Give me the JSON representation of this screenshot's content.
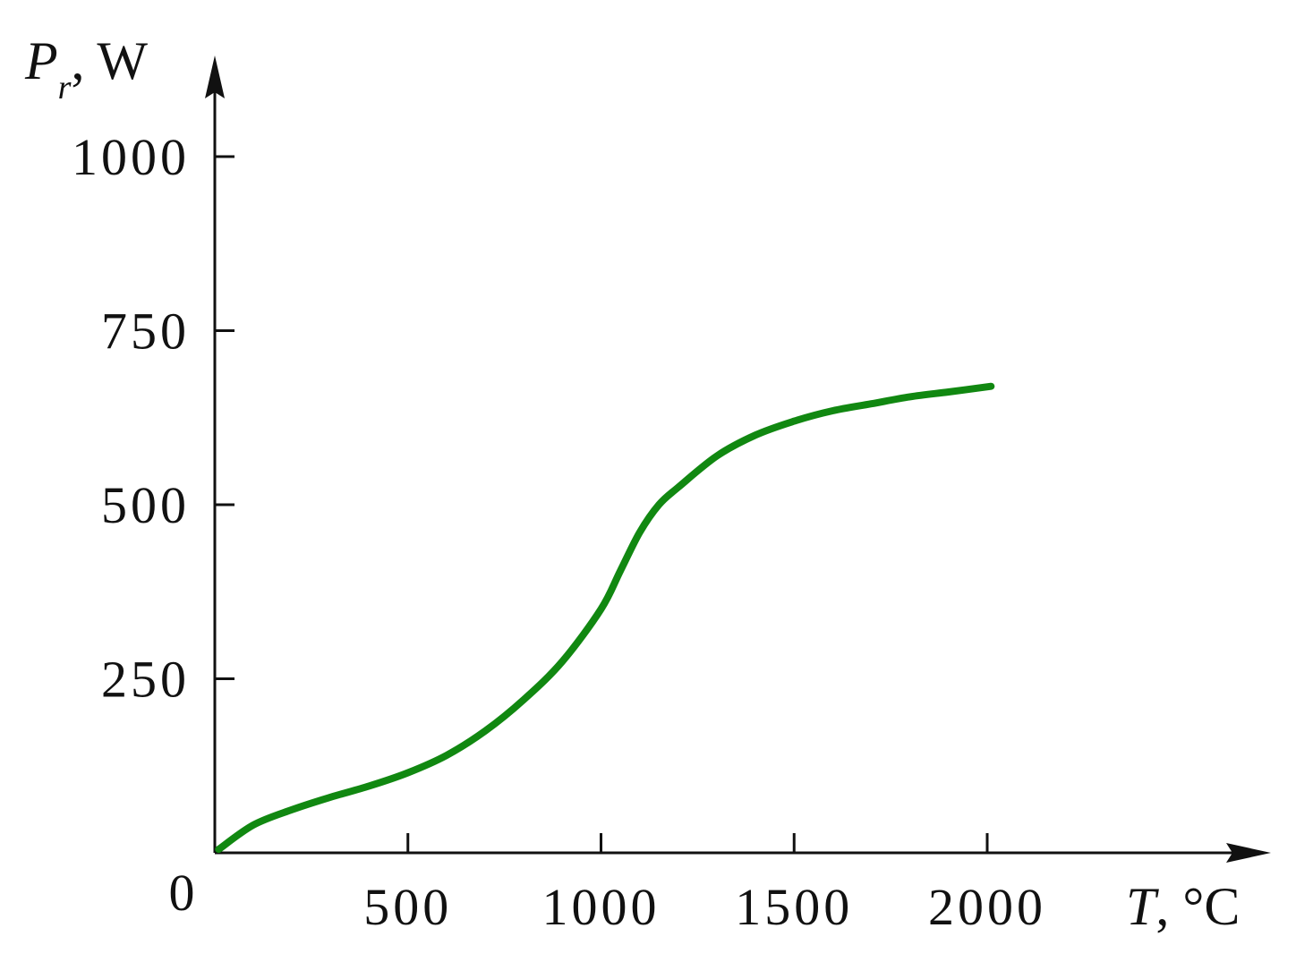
{
  "chart_data": {
    "type": "line",
    "title": "",
    "xlabel": {
      "var": "T",
      "unit": ", °C"
    },
    "ylabel": {
      "var": "P",
      "sub": "r",
      "unit": ", W"
    },
    "origin_label": "0",
    "xlim": [
      0,
      2000
    ],
    "ylim": [
      0,
      1000
    ],
    "x_ticks": [
      500,
      1000,
      1500,
      2000
    ],
    "y_ticks": [
      250,
      500,
      750,
      1000
    ],
    "x_tick_labels": [
      "500",
      "1000",
      "1500",
      "2000"
    ],
    "y_tick_labels": [
      "250",
      "500",
      "750",
      "1000"
    ],
    "grid": false,
    "legend": "none",
    "series": [
      {
        "color": "#118811",
        "x": [
          10,
          100,
          200,
          300,
          400,
          500,
          600,
          700,
          800,
          900,
          1000,
          1050,
          1100,
          1150,
          1200,
          1300,
          1400,
          1500,
          1600,
          1700,
          1800,
          1900,
          2010
        ],
        "y": [
          5,
          40,
          62,
          80,
          96,
          115,
          140,
          175,
          220,
          275,
          350,
          405,
          460,
          500,
          525,
          570,
          600,
          620,
          635,
          645,
          655,
          662,
          670
        ]
      }
    ]
  }
}
